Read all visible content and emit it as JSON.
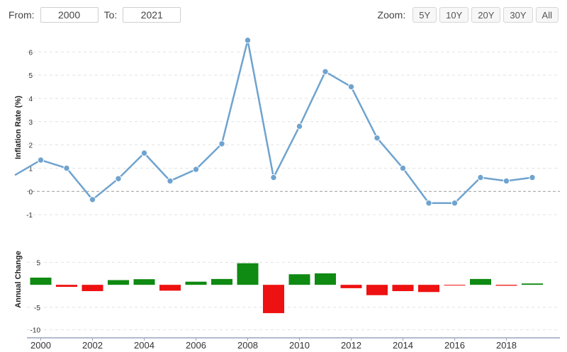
{
  "range": {
    "from_label": "From:",
    "from_value": "2000",
    "to_label": "To:",
    "to_value": "2021"
  },
  "zoom": {
    "label": "Zoom:",
    "buttons": [
      "5Y",
      "10Y",
      "20Y",
      "30Y",
      "All"
    ]
  },
  "chart_data": [
    {
      "type": "line",
      "ylabel": "Inflation Rate (%)",
      "ylim": [
        -1.3,
        6.8
      ],
      "yticks": [
        -1,
        0,
        1,
        2,
        3,
        4,
        5,
        6
      ],
      "x": [
        1999,
        2000,
        2001,
        2002,
        2003,
        2004,
        2005,
        2006,
        2007,
        2008,
        2009,
        2010,
        2011,
        2012,
        2013,
        2014,
        2015,
        2016,
        2017,
        2018,
        2019
      ],
      "series": [
        {
          "values": [
            0.7,
            1.35,
            1.0,
            -0.35,
            0.55,
            1.65,
            0.45,
            0.95,
            2.05,
            6.5,
            0.6,
            2.8,
            5.15,
            4.5,
            2.3,
            1.0,
            -0.5,
            -0.5,
            0.6,
            0.45,
            0.6
          ],
          "color": "#6fa3cf"
        }
      ],
      "grid": true
    },
    {
      "type": "bar",
      "ylabel": "Annual Change",
      "ylim": [
        -11,
        9
      ],
      "yticks": [
        -10,
        -5,
        5
      ],
      "x": [
        2000,
        2001,
        2002,
        2003,
        2004,
        2005,
        2006,
        2007,
        2008,
        2009,
        2010,
        2011,
        2012,
        2013,
        2014,
        2015,
        2016,
        2017,
        2018,
        2019
      ],
      "values": [
        1.6,
        -0.45,
        -1.4,
        1.05,
        1.25,
        -1.3,
        0.7,
        1.3,
        4.8,
        -6.3,
        2.35,
        2.55,
        -0.75,
        -2.3,
        -1.4,
        -1.6,
        -0.15,
        1.3,
        -0.2,
        0.3
      ],
      "positive_color": "#0f8a12",
      "negative_color": "#ee1111",
      "grid": true
    }
  ],
  "x_axis": {
    "ticks": [
      "2000",
      "2002",
      "2004",
      "2006",
      "2008",
      "2010",
      "2012",
      "2014",
      "2016",
      "2018"
    ]
  }
}
